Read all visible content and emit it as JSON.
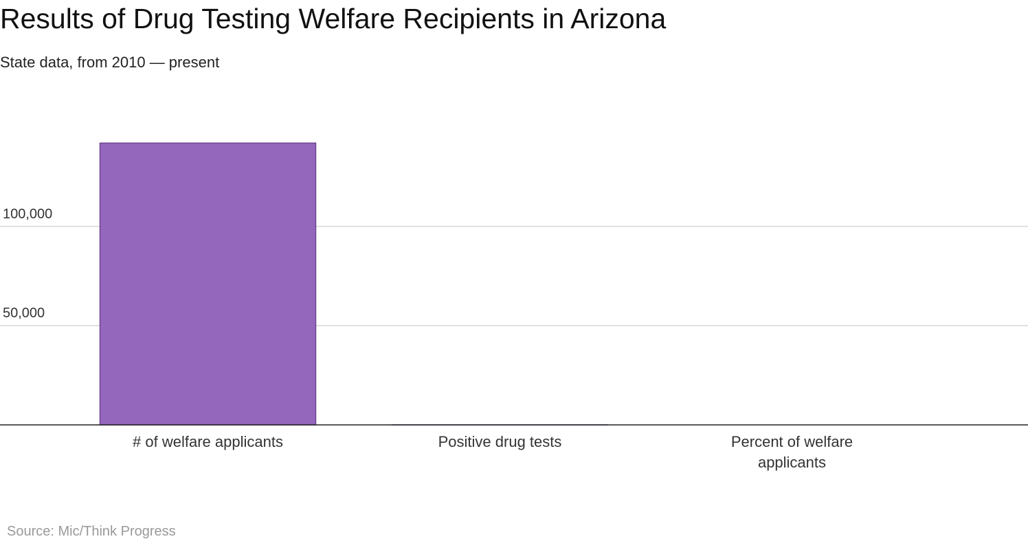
{
  "chart_data": {
    "type": "bar",
    "title": "Results of Drug Testing Welfare Recipients in Arizona",
    "subtitle": "State data, from 2010 — present",
    "source": "Source: Mic/Think Progress",
    "categories": [
      [
        "# of welfare applicants"
      ],
      [
        "Positive drug tests"
      ],
      [
        "Percent of welfare",
        "applicants"
      ]
    ],
    "values": [
      142000,
      1,
      0
    ],
    "yticks": [
      {
        "value": 50000,
        "label": "50,000"
      },
      {
        "value": 100000,
        "label": "100,000"
      }
    ],
    "ylim": [
      0,
      150000
    ],
    "grid": true,
    "colors": {
      "bar_fill": "#9467bd",
      "bar_stroke": "#6f4592",
      "grid": "#d6d6d6",
      "axis": "#222222"
    }
  }
}
